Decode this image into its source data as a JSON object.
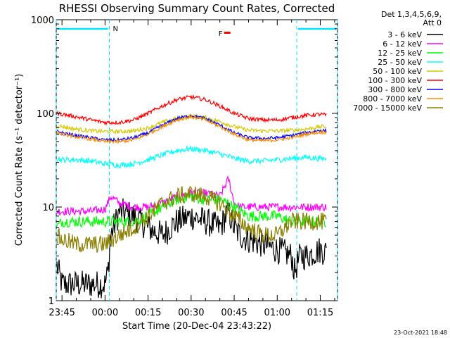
{
  "chart_data": {
    "type": "line",
    "title": "RHESSI Observing Summary Count Rates, Corrected",
    "xlabel": "Start Time (20-Dec-04 23:43:22)",
    "ylabel": "Corrected Count Rate (s⁻¹ detector⁻¹)",
    "y_scale": "log",
    "ylim": [
      1,
      1000
    ],
    "y_ticks": [
      {
        "value": 1,
        "label": "1"
      },
      {
        "value": 10,
        "label": "10"
      },
      {
        "value": 100,
        "label": "100"
      },
      {
        "value": 1000,
        "label": "1000"
      }
    ],
    "xlim_minutes": [
      -2,
      96
    ],
    "x_ticks": [
      {
        "minutes": 0,
        "label": "23:45"
      },
      {
        "minutes": 15,
        "label": "00:00"
      },
      {
        "minutes": 30,
        "label": "00:15"
      },
      {
        "minutes": 45,
        "label": "00:30"
      },
      {
        "minutes": 60,
        "label": "00:45"
      },
      {
        "minutes": 75,
        "label": "01:00"
      },
      {
        "minutes": 90,
        "label": "01:15"
      }
    ],
    "x_unit_note": "minutes after 23:45",
    "legend_header": [
      "Det 1,3,4,5,6,9,",
      "Att 0"
    ],
    "legend_position": "right",
    "annotations": [
      {
        "label": "N",
        "color": "#00e5ff",
        "x_minutes": 16.5
      },
      {
        "label": "F",
        "color": "#ff0000",
        "x_minutes": 56
      }
    ],
    "night_intervals": [
      [
        -2,
        16.5
      ],
      [
        81.8,
        96
      ]
    ],
    "grid": false,
    "timestamp": "23-Oct-2021 18:48",
    "series": [
      {
        "name": "3 - 6 keV",
        "color": "#000000",
        "x": [
          -2,
          0,
          5,
          10,
          15,
          16,
          17,
          20,
          25,
          30,
          35,
          40,
          45,
          50,
          55,
          58,
          60,
          62,
          65,
          70,
          75,
          80,
          81,
          82,
          83,
          85,
          90,
          95
        ],
        "y": [
          2.5,
          1.5,
          1.5,
          1.5,
          1.5,
          2,
          5,
          9,
          8,
          6,
          5,
          7,
          8,
          7,
          6,
          9,
          6,
          5,
          4.5,
          4,
          3.5,
          3,
          2,
          2.5,
          3,
          3,
          3.5,
          3
        ]
      },
      {
        "name": "6 - 12 keV",
        "color": "#ff00ff",
        "x": [
          -2,
          0,
          5,
          10,
          15,
          17,
          20,
          25,
          30,
          35,
          40,
          45,
          50,
          55,
          58,
          59,
          60,
          62,
          65,
          70,
          75,
          80,
          85,
          90,
          95
        ],
        "y": [
          9,
          9,
          9,
          9,
          9.5,
          13,
          11,
          10,
          10,
          11,
          13,
          14,
          14,
          13,
          20,
          15,
          11,
          10,
          10,
          10,
          10,
          10,
          10,
          10,
          10
        ]
      },
      {
        "name": "12 - 25 keV",
        "color": "#00ff00",
        "x": [
          -2,
          0,
          5,
          10,
          15,
          20,
          25,
          30,
          35,
          40,
          45,
          50,
          55,
          60,
          65,
          70,
          75,
          80,
          85,
          90,
          95
        ],
        "y": [
          6,
          7,
          7,
          7,
          7,
          7,
          7,
          8,
          10,
          12,
          13,
          12,
          12,
          10,
          8,
          8,
          8,
          7,
          7,
          7,
          7
        ]
      },
      {
        "name": "25 - 50 keV",
        "color": "#00ffff",
        "x": [
          -2,
          0,
          5,
          10,
          15,
          20,
          25,
          30,
          35,
          40,
          45,
          50,
          55,
          60,
          65,
          70,
          75,
          80,
          85,
          90,
          95
        ],
        "y": [
          33,
          32,
          32,
          31,
          29,
          28,
          29,
          32,
          36,
          40,
          42,
          40,
          37,
          33,
          31,
          31,
          32,
          33,
          34,
          33,
          32
        ]
      },
      {
        "name": "50 - 100 keV",
        "color": "#d8c800",
        "x": [
          -2,
          0,
          5,
          10,
          15,
          20,
          25,
          30,
          35,
          40,
          45,
          50,
          55,
          60,
          65,
          70,
          75,
          80,
          85,
          90,
          95
        ],
        "y": [
          75,
          72,
          68,
          65,
          64,
          64,
          65,
          70,
          80,
          88,
          93,
          90,
          82,
          72,
          66,
          65,
          65,
          66,
          68,
          72,
          74
        ]
      },
      {
        "name": "100 - 300 keV",
        "color": "#ff0000",
        "x": [
          -2,
          0,
          5,
          10,
          15,
          20,
          25,
          30,
          35,
          40,
          45,
          50,
          55,
          60,
          65,
          70,
          75,
          80,
          85,
          90,
          95
        ],
        "y": [
          100,
          98,
          92,
          85,
          80,
          80,
          85,
          100,
          120,
          140,
          150,
          140,
          120,
          100,
          88,
          85,
          85,
          90,
          95,
          98,
          92
        ]
      },
      {
        "name": "300 - 800 keV",
        "color": "#0000ff",
        "x": [
          -2,
          0,
          5,
          10,
          15,
          20,
          25,
          30,
          35,
          40,
          45,
          50,
          55,
          60,
          65,
          70,
          75,
          80,
          85,
          90,
          95
        ],
        "y": [
          65,
          62,
          58,
          55,
          52,
          52,
          55,
          62,
          75,
          88,
          95,
          88,
          75,
          62,
          55,
          54,
          55,
          58,
          62,
          66,
          64
        ]
      },
      {
        "name": "800 - 7000 keV",
        "color": "#ff8c00",
        "x": [
          -2,
          0,
          5,
          10,
          15,
          20,
          25,
          30,
          35,
          40,
          45,
          50,
          55,
          60,
          65,
          70,
          75,
          80,
          85,
          90,
          95
        ],
        "y": [
          62,
          60,
          56,
          53,
          50,
          50,
          52,
          60,
          72,
          85,
          92,
          85,
          72,
          60,
          52,
          51,
          52,
          55,
          60,
          63,
          62
        ]
      },
      {
        "name": "7000 - 15000 keV",
        "color": "#8b8000",
        "x": [
          -2,
          0,
          5,
          10,
          15,
          20,
          25,
          30,
          35,
          40,
          45,
          50,
          55,
          60,
          65,
          70,
          75,
          80,
          85,
          90,
          95
        ],
        "y": [
          5,
          4.5,
          4,
          4,
          4,
          5,
          6,
          8,
          11,
          13,
          14,
          13,
          11,
          8,
          6,
          5,
          5,
          7,
          7,
          7,
          7
        ]
      }
    ]
  }
}
